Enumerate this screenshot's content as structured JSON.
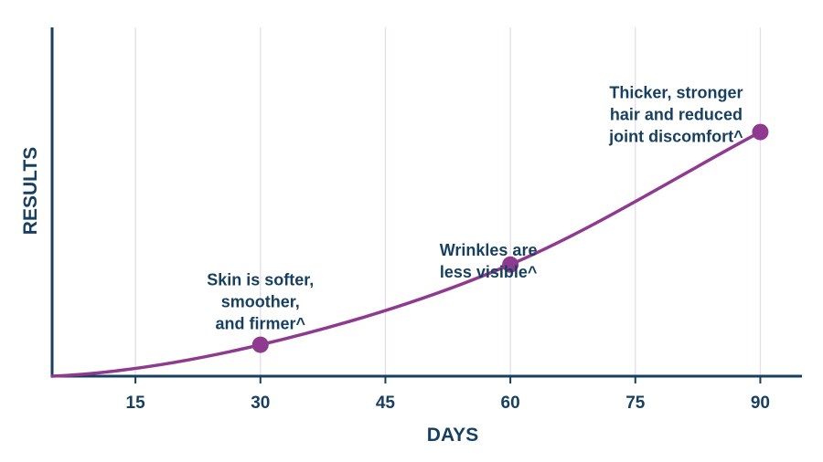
{
  "chart_data": {
    "type": "line",
    "title": "",
    "xlabel": "DAYS",
    "ylabel": "RESULTS",
    "xlim": [
      5,
      95
    ],
    "ylim": [
      0,
      100
    ],
    "x_ticks": [
      15,
      30,
      45,
      60,
      75,
      90
    ],
    "x_tick_labels": [
      "15",
      "30",
      "45",
      "60",
      "75",
      "90"
    ],
    "grid": "vertical",
    "series": [
      {
        "color": "#8e3a8e",
        "x": [
          5,
          30,
          60,
          90
        ],
        "y": [
          0,
          9,
          32,
          70
        ]
      }
    ],
    "markers": [
      {
        "x": 30,
        "y": 9,
        "label": [
          "Skin is softer,",
          "smoother,",
          "and firmer^"
        ]
      },
      {
        "x": 60,
        "y": 32,
        "label": [
          "Wrinkles are",
          "less visible^"
        ]
      },
      {
        "x": 90,
        "y": 70,
        "label": [
          "Thicker, stronger",
          "hair and reduced",
          "joint discomfort^"
        ]
      }
    ],
    "colors": {
      "axis": "#173f5f",
      "text": "#173f5f",
      "line": "#8e3a8e",
      "grid": "#e6dde8"
    }
  }
}
